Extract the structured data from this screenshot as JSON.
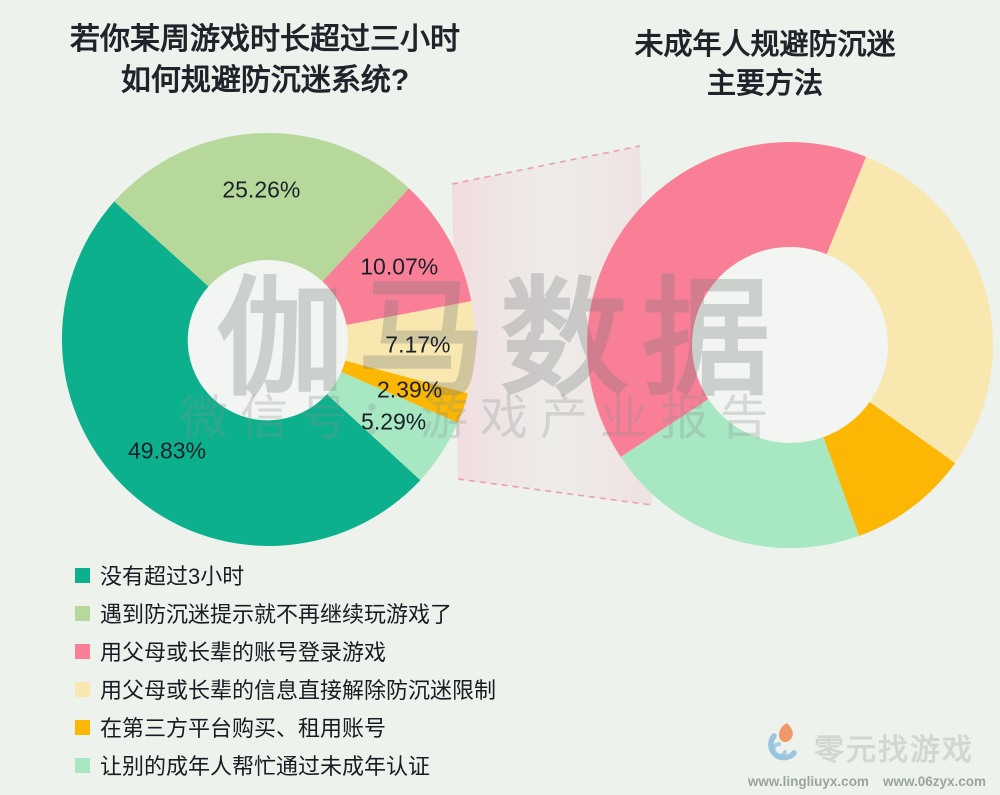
{
  "page": {
    "background": "#edf2ec"
  },
  "left_chart": {
    "title_line1": "若你某周游戏时长超过三小时",
    "title_line2": "如何规避防沉迷系统?"
  },
  "right_chart": {
    "title_line1": "未成年人规避防沉迷",
    "title_line2": "主要方法"
  },
  "chart_data": [
    {
      "type": "pie",
      "donut": true,
      "title": "若你某周游戏时长超过三小时 如何规避防沉迷系统?",
      "segments": [
        {
          "label": "没有超过3小时",
          "value": 49.83,
          "display": "49.83%",
          "color": "#0cb08c"
        },
        {
          "label": "遇到防沉迷提示就不再继续玩游戏了",
          "value": 25.26,
          "display": "25.26%",
          "color": "#b6d99b"
        },
        {
          "label": "用父母或长辈的账号登录游戏",
          "value": 10.07,
          "display": "10.07%",
          "color": "#f97f97"
        },
        {
          "label": "用父母或长辈的信息直接解除防沉迷限制",
          "value": 7.17,
          "display": "7.17%",
          "color": "#f8e7ae"
        },
        {
          "label": "在第三方平台购买、租用账号",
          "value": 2.39,
          "display": "2.39%",
          "color": "#fbb703"
        },
        {
          "label": "让别的成年人帮忙通过未成年认证",
          "value": 5.29,
          "display": "5.29%",
          "color": "#a7e8c3"
        }
      ]
    },
    {
      "type": "pie",
      "donut": true,
      "title": "未成年人规避防沉迷 主要方法",
      "normalized": true,
      "segments": [
        {
          "label": "用父母或长辈的信息直接解除防沉迷限制",
          "value": 7.17,
          "color": "#f8e7ae"
        },
        {
          "label": "在第三方平台购买、租用账号",
          "value": 2.39,
          "color": "#fbb703"
        },
        {
          "label": "让别的成年人帮忙通过未成年认证",
          "value": 5.29,
          "color": "#a7e8c3"
        },
        {
          "label": "用父母或长辈的账号登录游戏",
          "value": 10.07,
          "color": "#f97f97"
        }
      ]
    }
  ],
  "legend": {
    "items": [
      {
        "label": "没有超过3小时",
        "color": "#0cb08c"
      },
      {
        "label": "遇到防沉迷提示就不再继续玩游戏了",
        "color": "#b6d99b"
      },
      {
        "label": "用父母或长辈的账号登录游戏",
        "color": "#f97f97"
      },
      {
        "label": "用父母或长辈的信息直接解除防沉迷限制",
        "color": "#f8e7ae"
      },
      {
        "label": "在第三方平台购买、租用账号",
        "color": "#fbb703"
      },
      {
        "label": "让别的成年人帮忙通过未成年认证",
        "color": "#a7e8c3"
      }
    ]
  },
  "watermark": {
    "line1": "伽马数据",
    "line2": "微信号：游戏产业报告"
  },
  "footer_logo": {
    "name": "零元找游戏",
    "url1": "www.lingliuyx.com",
    "url2": "www.06zyx.com"
  }
}
